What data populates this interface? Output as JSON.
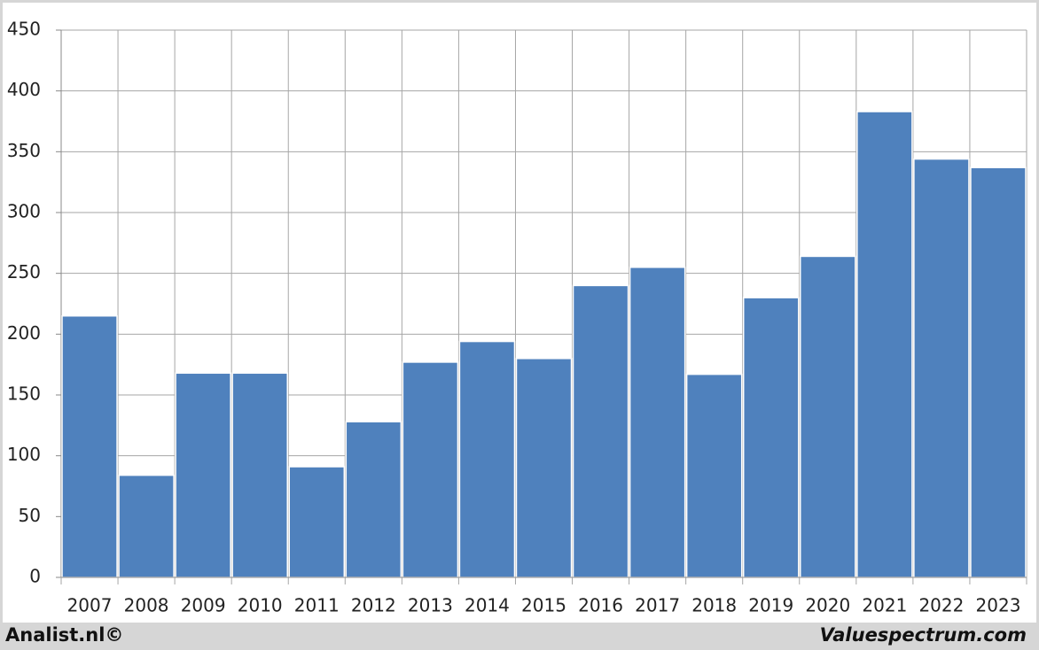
{
  "chart_data": {
    "type": "bar",
    "categories": [
      "2007",
      "2008",
      "2009",
      "2010",
      "2011",
      "2012",
      "2013",
      "2014",
      "2015",
      "2016",
      "2017",
      "2018",
      "2019",
      "2020",
      "2021",
      "2022",
      "2023"
    ],
    "values": [
      215,
      84,
      168,
      168,
      91,
      128,
      177,
      194,
      180,
      240,
      255,
      167,
      230,
      264,
      383,
      344,
      337
    ],
    "color": "#4f81bd",
    "ylim": [
      0,
      450
    ],
    "yticks": [
      0,
      50,
      100,
      150,
      200,
      250,
      300,
      350,
      400,
      450
    ],
    "grid": true,
    "footer_left": "Analist.nl©",
    "footer_right": "Valuespectrum.com"
  }
}
